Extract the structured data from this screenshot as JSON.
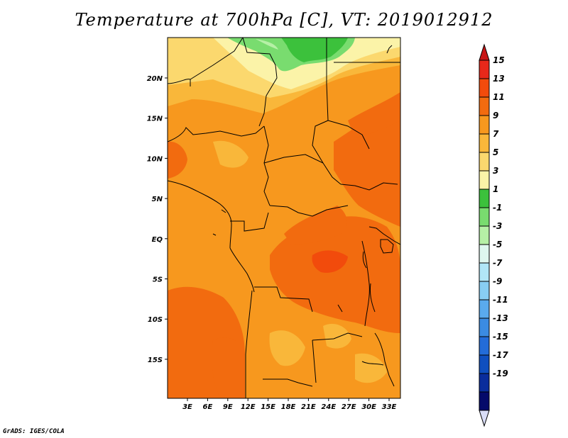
{
  "title": "Temperature at 700hPa [C], VT: 2019012912",
  "credit": "GrADS: IGES/COLA",
  "map": {
    "lat_labels": [
      "20N",
      "15N",
      "10N",
      "5N",
      "EQ",
      "5S",
      "10S",
      "15S"
    ],
    "lon_labels": [
      "3E",
      "6E",
      "9E",
      "12E",
      "15E",
      "18E",
      "21E",
      "24E",
      "27E",
      "30E",
      "33E"
    ]
  },
  "colorbar": {
    "labels": [
      "15",
      "13",
      "11",
      "9",
      "7",
      "5",
      "3",
      "1",
      "-1",
      "-3",
      "-5",
      "-7",
      "-9",
      "-11",
      "-13",
      "-15",
      "-17",
      "-19"
    ],
    "colors": [
      "#e8281a",
      "#f24b0c",
      "#f26b0f",
      "#f7981e",
      "#f9b73a",
      "#fbd86e",
      "#fbf3a8",
      "#3cc13c",
      "#79dc6f",
      "#b6f0a6",
      "#dff7ef",
      "#b1e6f7",
      "#88cef3",
      "#5aaaed",
      "#3b8be2",
      "#236cd9",
      "#0f4fbf",
      "#0a2d9c",
      "#050a6a"
    ],
    "top_arrow_color": "#c81414",
    "bottom_arrow_color": "#d9ddf7"
  }
}
